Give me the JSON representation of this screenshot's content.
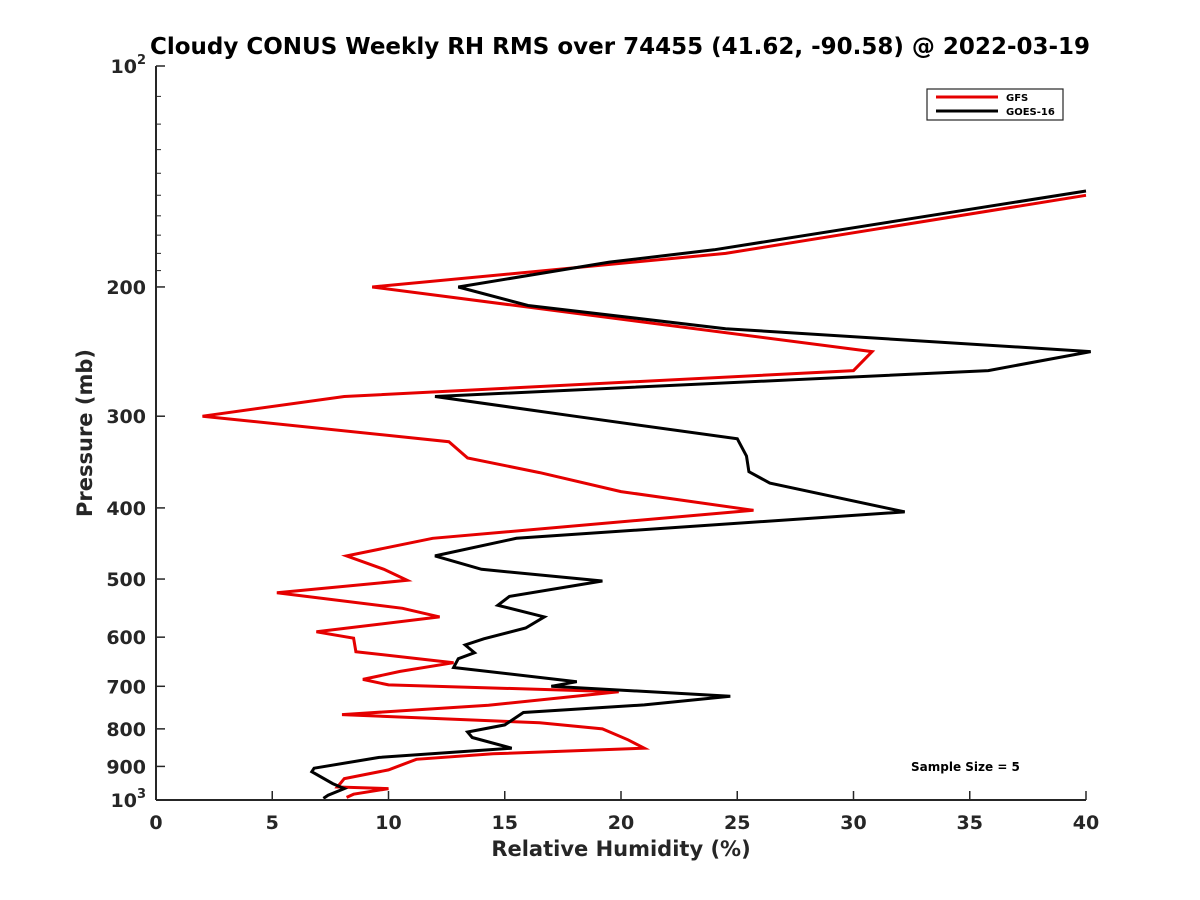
{
  "chart_data": {
    "type": "line",
    "title": "Cloudy CONUS Weekly RH RMS over 74455 (41.62, -90.58) @ 2022-03-19",
    "xlabel": "Relative Humidity (%)",
    "ylabel": "Pressure (mb)",
    "xlim": [
      0,
      40
    ],
    "ylim": [
      100,
      1000
    ],
    "y_scale": "log",
    "y_reversed": true,
    "grid": false,
    "legend_position": "top-right",
    "x_ticks": [
      "0",
      "5",
      "10",
      "15",
      "20",
      "25",
      "30",
      "35",
      "40"
    ],
    "y_ticks": [
      {
        "value": 100,
        "base": "10",
        "exp": "2"
      },
      {
        "value": 200,
        "label": "200"
      },
      {
        "value": 300,
        "label": "300"
      },
      {
        "value": 400,
        "label": "400"
      },
      {
        "value": 500,
        "label": "500"
      },
      {
        "value": 600,
        "label": "600"
      },
      {
        "value": 700,
        "label": "700"
      },
      {
        "value": 800,
        "label": "800"
      },
      {
        "value": 900,
        "label": "900"
      },
      {
        "value": 1000,
        "base": "10",
        "exp": "3"
      }
    ],
    "series": [
      {
        "name": "GFS",
        "color": "#e50000",
        "points": [
          [
            40.0,
            150
          ],
          [
            24.5,
            180
          ],
          [
            9.3,
            200
          ],
          [
            30.8,
            245
          ],
          [
            30.0,
            260
          ],
          [
            8.1,
            282
          ],
          [
            2.0,
            300
          ],
          [
            12.6,
            325
          ],
          [
            13.4,
            342
          ],
          [
            16.5,
            358
          ],
          [
            20.0,
            380
          ],
          [
            25.7,
            403
          ],
          [
            11.9,
            440
          ],
          [
            8.2,
            465
          ],
          [
            9.8,
            485
          ],
          [
            10.8,
            502
          ],
          [
            5.2,
            522
          ],
          [
            10.6,
            548
          ],
          [
            12.2,
            563
          ],
          [
            6.9,
            590
          ],
          [
            8.5,
            602
          ],
          [
            8.6,
            628
          ],
          [
            12.8,
            650
          ],
          [
            10.5,
            668
          ],
          [
            8.9,
            685
          ],
          [
            10.0,
            697
          ],
          [
            19.9,
            712
          ],
          [
            14.3,
            743
          ],
          [
            8.0,
            765
          ],
          [
            16.5,
            785
          ],
          [
            19.2,
            800
          ],
          [
            20.3,
            828
          ],
          [
            21.0,
            850
          ],
          [
            14.5,
            865
          ],
          [
            11.2,
            880
          ],
          [
            10.0,
            910
          ],
          [
            8.1,
            935
          ],
          [
            7.8,
            960
          ],
          [
            10.0,
            965
          ],
          [
            8.5,
            982
          ],
          [
            8.2,
            992
          ]
        ],
        "bars": []
      },
      {
        "name": "GOES-16",
        "color": "#000000",
        "points": [
          [
            40.0,
            148
          ],
          [
            24.0,
            178
          ],
          [
            19.5,
            185
          ],
          [
            13.0,
            200
          ],
          [
            16.0,
            212
          ],
          [
            24.5,
            228
          ],
          [
            40.2,
            245
          ],
          [
            35.8,
            260
          ],
          [
            12.0,
            282
          ],
          [
            18.0,
            300
          ],
          [
            25.0,
            322
          ],
          [
            25.4,
            340
          ],
          [
            25.5,
            357
          ],
          [
            26.4,
            370
          ],
          [
            32.2,
            405
          ],
          [
            15.5,
            440
          ],
          [
            12.0,
            465
          ],
          [
            14.0,
            485
          ],
          [
            19.2,
            503
          ],
          [
            15.2,
            528
          ],
          [
            14.7,
            543
          ],
          [
            16.7,
            563
          ],
          [
            15.9,
            583
          ],
          [
            14.1,
            603
          ],
          [
            13.3,
            615
          ],
          [
            13.7,
            630
          ],
          [
            13.0,
            642
          ],
          [
            12.8,
            660
          ],
          [
            18.1,
            690
          ],
          [
            17.0,
            700
          ],
          [
            24.7,
            722
          ],
          [
            21.0,
            742
          ],
          [
            15.8,
            760
          ],
          [
            15.0,
            790
          ],
          [
            13.4,
            808
          ],
          [
            13.6,
            822
          ],
          [
            15.3,
            850
          ],
          [
            9.6,
            875
          ],
          [
            6.8,
            905
          ],
          [
            6.7,
            915
          ],
          [
            7.6,
            950
          ],
          [
            8.1,
            965
          ],
          [
            7.4,
            985
          ],
          [
            7.2,
            995
          ]
        ]
      }
    ],
    "annotation": "Sample Size = 5"
  }
}
